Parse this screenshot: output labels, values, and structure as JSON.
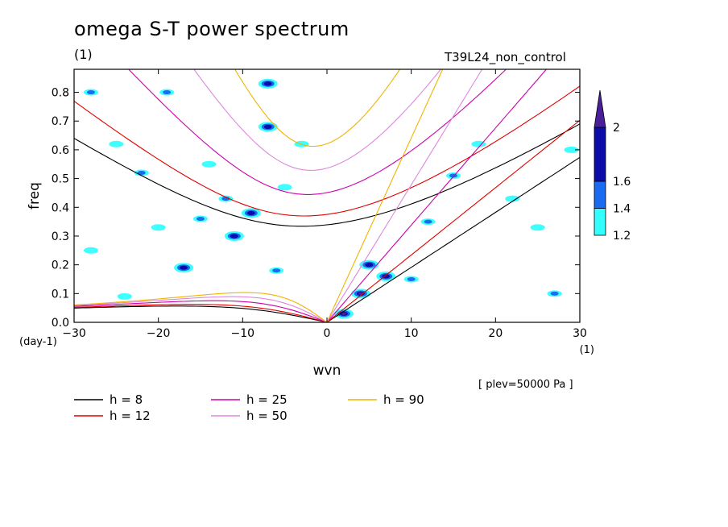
{
  "header": {
    "title": "omega S-T power spectrum",
    "unit": "(1)",
    "run_name": "T39L24_non_control",
    "plev": "[ plev=50000 Pa ]"
  },
  "chart_data": {
    "type": "heatmap",
    "title": "omega S-T power spectrum",
    "xlabel": "wvn",
    "ylabel": "freq",
    "x_unit": "(1)",
    "y_unit": "(day-1)",
    "xlim": [
      -30,
      30
    ],
    "ylim": [
      0,
      0.88
    ],
    "x_ticks": [
      -30,
      -20,
      -10,
      0,
      10,
      20,
      30
    ],
    "y_ticks": [
      0.0,
      0.1,
      0.2,
      0.3,
      0.4,
      0.5,
      0.6,
      0.7,
      0.8
    ],
    "colorbar": {
      "levels": [
        1.2,
        1.4,
        1.6,
        2
      ],
      "colors": [
        "#33ffff",
        "#1a6bf2",
        "#0c0ca8",
        "#4a1f99"
      ],
      "extend": "max"
    },
    "dispersion_curves": [
      {
        "label": "h =  8",
        "h": 8,
        "color": "#000000"
      },
      {
        "label": "h = 12",
        "h": 12,
        "color": "#e00000"
      },
      {
        "label": "h = 25",
        "h": 25,
        "color": "#cc00aa"
      },
      {
        "label": "h = 50",
        "h": 50,
        "color": "#dd88dd"
      },
      {
        "label": "h = 90",
        "h": 90,
        "color": "#f0b400"
      }
    ],
    "shaded_regions": [
      {
        "x": -28,
        "y": 0.8,
        "level": 1.4
      },
      {
        "x": -25,
        "y": 0.62,
        "level": 1.2
      },
      {
        "x": -22,
        "y": 0.52,
        "level": 1.4
      },
      {
        "x": -20,
        "y": 0.33,
        "level": 1.2
      },
      {
        "x": -19,
        "y": 0.8,
        "level": 1.4
      },
      {
        "x": -17,
        "y": 0.19,
        "level": 1.6
      },
      {
        "x": -15,
        "y": 0.36,
        "level": 1.4
      },
      {
        "x": -14,
        "y": 0.55,
        "level": 1.2
      },
      {
        "x": -12,
        "y": 0.43,
        "level": 1.4
      },
      {
        "x": -11,
        "y": 0.3,
        "level": 1.6
      },
      {
        "x": -9,
        "y": 0.38,
        "level": 1.6
      },
      {
        "x": -7,
        "y": 0.68,
        "level": 1.6
      },
      {
        "x": -6,
        "y": 0.18,
        "level": 1.4
      },
      {
        "x": -5,
        "y": 0.47,
        "level": 1.2
      },
      {
        "x": -3,
        "y": 0.62,
        "level": 1.2
      },
      {
        "x": -7,
        "y": 0.83,
        "level": 1.6
      },
      {
        "x": 2,
        "y": 0.03,
        "level": 2
      },
      {
        "x": 4,
        "y": 0.1,
        "level": 2
      },
      {
        "x": 5,
        "y": 0.2,
        "level": 1.6
      },
      {
        "x": 7,
        "y": 0.16,
        "level": 1.6
      },
      {
        "x": 10,
        "y": 0.15,
        "level": 1.4
      },
      {
        "x": 12,
        "y": 0.35,
        "level": 1.4
      },
      {
        "x": 15,
        "y": 0.51,
        "level": 1.4
      },
      {
        "x": 18,
        "y": 0.62,
        "level": 1.2
      },
      {
        "x": 22,
        "y": 0.43,
        "level": 1.2
      },
      {
        "x": 25,
        "y": 0.33,
        "level": 1.2
      },
      {
        "x": 27,
        "y": 0.1,
        "level": 1.4
      },
      {
        "x": 29,
        "y": 0.6,
        "level": 1.2
      },
      {
        "x": -24,
        "y": 0.09,
        "level": 1.2
      },
      {
        "x": -28,
        "y": 0.25,
        "level": 1.2
      }
    ]
  }
}
